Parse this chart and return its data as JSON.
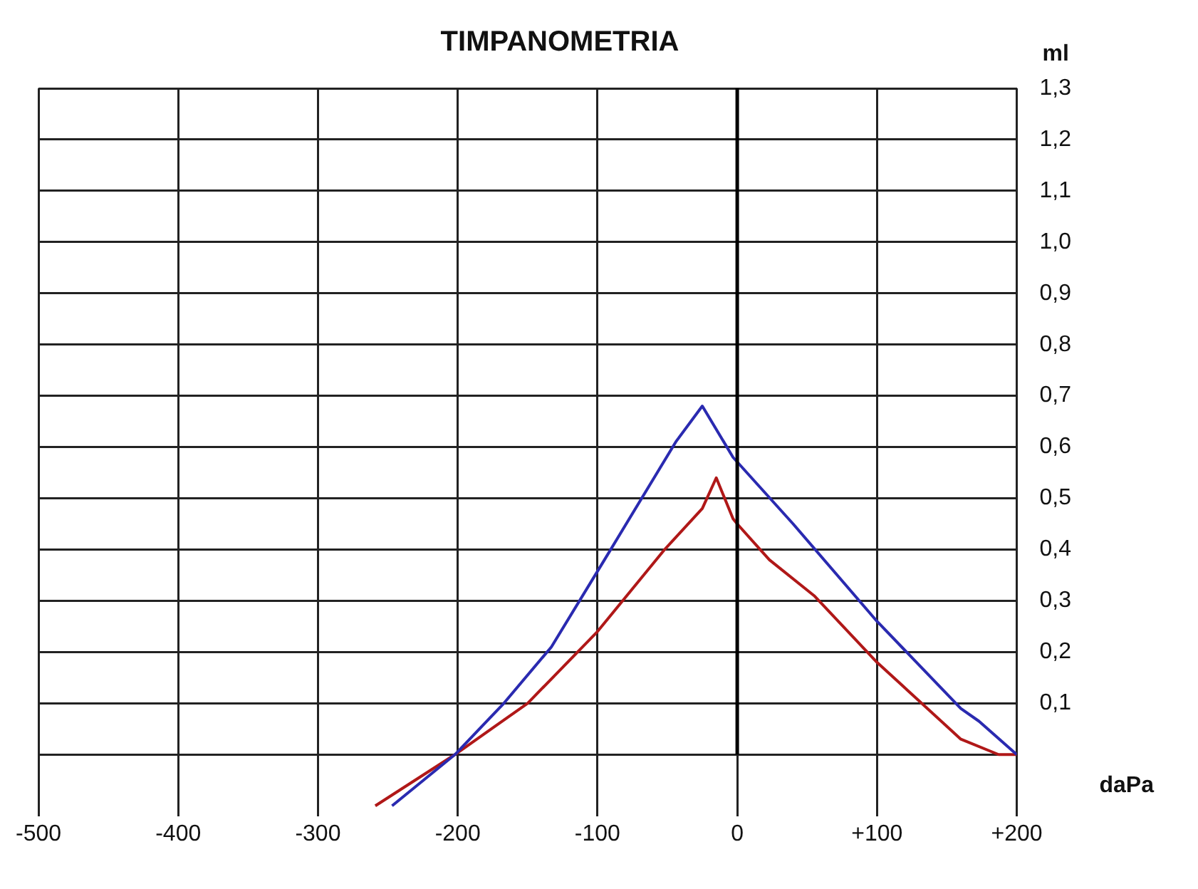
{
  "chart_data": {
    "type": "line",
    "title": "TIMPANOMETRIA",
    "xlabel": "daPa",
    "ylabel": "ml",
    "xlim": [
      -500,
      200
    ],
    "xticks": [
      -500,
      -400,
      -300,
      -200,
      -100,
      0,
      {
        "value": 100,
        "label": "+100"
      },
      {
        "value": 200,
        "label": "+200"
      }
    ],
    "ylim": [
      -0.12,
      1.3
    ],
    "yticks": [
      {
        "value": 0,
        "label": null
      },
      {
        "value": 0.1,
        "label": "0,1"
      },
      {
        "value": 0.2,
        "label": "0,2"
      },
      {
        "value": 0.3,
        "label": "0,3"
      },
      {
        "value": 0.4,
        "label": "0,4"
      },
      {
        "value": 0.5,
        "label": "0,5"
      },
      {
        "value": 0.6,
        "label": "0,6"
      },
      {
        "value": 0.7,
        "label": "0,7"
      },
      {
        "value": 0.8,
        "label": "0,8"
      },
      {
        "value": 0.9,
        "label": "0,9"
      },
      {
        "value": 1.0,
        "label": "1,0"
      },
      {
        "value": 1.1,
        "label": "1,1"
      },
      {
        "value": 1.2,
        "label": "1,2"
      },
      {
        "value": 1.3,
        "label": "1,3"
      }
    ],
    "grid": true,
    "legend": false,
    "marker": "none",
    "line_style": "solid",
    "ref_lines": [
      {
        "axis": "x",
        "value": 0,
        "color": "#000000"
      }
    ],
    "series": [
      {
        "color": "#2a2ab0",
        "x": [
          -247,
          -202,
          -167,
          -133,
          -95,
          -44,
          -25,
          -3,
          40,
          100,
          160,
          173,
          200
        ],
        "values": [
          -0.1,
          0,
          0.1,
          0.21,
          0.38,
          0.61,
          0.68,
          0.58,
          0.45,
          0.26,
          0.09,
          0.065,
          0
        ]
      },
      {
        "color": "#b01818",
        "x": [
          -259,
          -202,
          -150,
          -100,
          -52,
          -25,
          -15,
          -3,
          0,
          23,
          55,
          100,
          160,
          187,
          200
        ],
        "values": [
          -0.1,
          0,
          0.1,
          0.24,
          0.4,
          0.48,
          0.54,
          0.46,
          0.45,
          0.38,
          0.31,
          0.18,
          0.03,
          0,
          0
        ]
      }
    ]
  }
}
